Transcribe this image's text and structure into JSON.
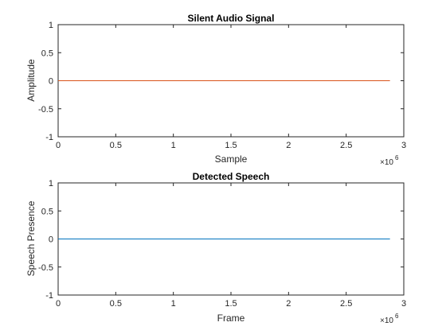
{
  "chart_data": [
    {
      "type": "line",
      "title": "Silent Audio Signal",
      "xlabel": "Sample",
      "ylabel": "Amplitude",
      "x_exponent_base": "×10",
      "x_exponent_power": "6",
      "xlim": [
        0,
        3000000
      ],
      "ylim": [
        -1,
        1
      ],
      "x_ticks": [
        0,
        500000,
        1000000,
        1500000,
        2000000,
        2500000,
        3000000
      ],
      "x_tick_labels": [
        "0",
        "0.5",
        "1",
        "1.5",
        "2",
        "2.5",
        "3"
      ],
      "y_ticks": [
        -1,
        -0.5,
        0,
        0.5,
        1
      ],
      "y_tick_labels": [
        "-1",
        "-0.5",
        "0",
        "0.5",
        "1"
      ],
      "grid": false,
      "series": [
        {
          "color": "#d95319",
          "x": [
            0,
            2880000
          ],
          "y": [
            0,
            0
          ]
        }
      ]
    },
    {
      "type": "line",
      "title": "Detected Speech",
      "xlabel": "Frame",
      "ylabel": "Speech Presence",
      "x_exponent_base": "×10",
      "x_exponent_power": "6",
      "xlim": [
        0,
        3000000
      ],
      "ylim": [
        -1,
        1
      ],
      "x_ticks": [
        0,
        500000,
        1000000,
        1500000,
        2000000,
        2500000,
        3000000
      ],
      "x_tick_labels": [
        "0",
        "0.5",
        "1",
        "1.5",
        "2",
        "2.5",
        "3"
      ],
      "y_ticks": [
        -1,
        -0.5,
        0,
        0.5,
        1
      ],
      "y_tick_labels": [
        "-1",
        "-0.5",
        "0",
        "0.5",
        "1"
      ],
      "grid": false,
      "series": [
        {
          "color": "#0072bd",
          "x": [
            0,
            2880000
          ],
          "y": [
            0,
            0
          ]
        }
      ]
    }
  ]
}
